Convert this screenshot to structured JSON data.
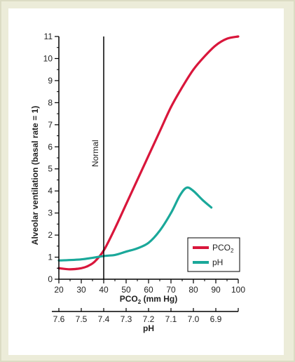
{
  "colors": {
    "pco2": "#d9163b",
    "ph": "#1aa89a",
    "axis": "#000000",
    "panel_bg": "#ececd9"
  },
  "chart_data": {
    "type": "line",
    "title": "",
    "ylabel": "Alveolar ventilation (basal rate = 1)",
    "xlabel_main": "PCO",
    "xlabel_main_sub": "2",
    "xlabel_main_unit": " (mm Hg)",
    "xlabel_secondary": "pH",
    "ylim": [
      0,
      11
    ],
    "xlim": [
      20,
      100
    ],
    "yticks": [
      "0",
      "1",
      "2",
      "3",
      "4",
      "5",
      "6",
      "7",
      "8",
      "9",
      "10",
      "11"
    ],
    "xticks": [
      "20",
      "30",
      "40",
      "50",
      "60",
      "70",
      "80",
      "90",
      "100"
    ],
    "ph_ticks": [
      "7.6",
      "7.5",
      "7.4",
      "7.3",
      "7.2",
      "7.1",
      "7.0",
      "6.9"
    ],
    "reference_line": {
      "x": 40,
      "label": "Normal"
    },
    "legend_position": "lower-right",
    "series": [
      {
        "name": "PCO",
        "name_sub": "2",
        "color": "#d9163b",
        "points": [
          [
            20,
            0.5
          ],
          [
            25,
            0.45
          ],
          [
            30,
            0.5
          ],
          [
            33,
            0.6
          ],
          [
            36,
            0.8
          ],
          [
            40,
            1.3
          ],
          [
            45,
            2.3
          ],
          [
            50,
            3.4
          ],
          [
            55,
            4.5
          ],
          [
            60,
            5.6
          ],
          [
            65,
            6.7
          ],
          [
            70,
            7.8
          ],
          [
            75,
            8.7
          ],
          [
            80,
            9.5
          ],
          [
            85,
            10.1
          ],
          [
            90,
            10.6
          ],
          [
            95,
            10.9
          ],
          [
            100,
            11.0
          ]
        ]
      },
      {
        "name": "pH",
        "name_sub": "",
        "color": "#1aa89a",
        "points": [
          [
            20,
            0.85
          ],
          [
            30,
            0.9
          ],
          [
            40,
            1.05
          ],
          [
            45,
            1.1
          ],
          [
            50,
            1.25
          ],
          [
            55,
            1.4
          ],
          [
            60,
            1.65
          ],
          [
            65,
            2.2
          ],
          [
            70,
            3.0
          ],
          [
            74,
            3.8
          ],
          [
            77,
            4.15
          ],
          [
            80,
            4.0
          ],
          [
            84,
            3.6
          ],
          [
            88,
            3.25
          ]
        ]
      }
    ]
  }
}
